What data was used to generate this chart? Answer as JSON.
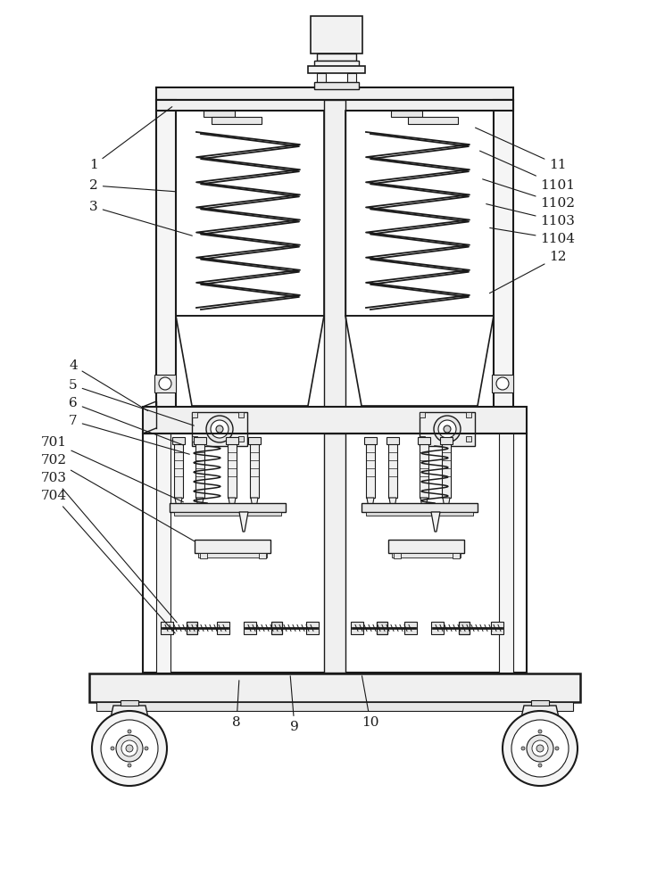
{
  "bg_color": "#ffffff",
  "line_color": "#1a1a1a",
  "figsize": [
    7.45,
    10.0
  ],
  "dpi": 100
}
